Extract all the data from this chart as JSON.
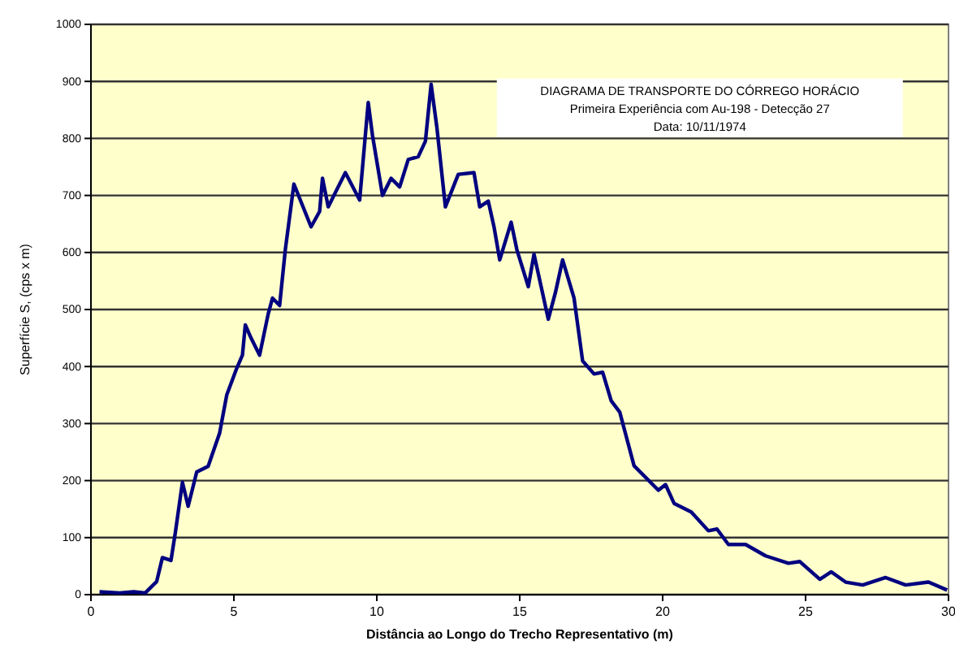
{
  "chart_data": {
    "type": "line",
    "title": "DIAGRAMA DE TRANSPORTE DO CÓRREGO HORÁCIO",
    "subtitle": "Primeira Experiência com Au-198 - Detecção 27\nData: 10/11/1974",
    "xlabel": "Distância ao Longo do Trecho Representativo (m)",
    "ylabel": "Superfície S, (cps x m)",
    "xlim": [
      0,
      30
    ],
    "xticks": [
      0,
      5,
      10,
      15,
      20,
      25,
      30
    ],
    "ylim": [
      0,
      1000
    ],
    "yticks": [
      0,
      100,
      200,
      300,
      400,
      500,
      600,
      700,
      800,
      900,
      1000
    ],
    "grid": "y",
    "marker": "none",
    "line_style": "solid",
    "series": [
      {
        "color": "#000080",
        "x": [
          0.3,
          1.0,
          1.5,
          1.9,
          2.3,
          2.5,
          2.8,
          2.95,
          3.2,
          3.4,
          3.7,
          4.1,
          4.5,
          4.75,
          5.1,
          5.3,
          5.4,
          5.6,
          5.9,
          6.2,
          6.35,
          6.6,
          6.8,
          7.1,
          7.7,
          8.0,
          8.1,
          8.3,
          8.6,
          8.9,
          9.4,
          9.7,
          9.85,
          10.2,
          10.5,
          10.8,
          11.1,
          11.45,
          11.7,
          11.9,
          12.1,
          12.4,
          12.85,
          13.4,
          13.6,
          13.9,
          14.1,
          14.3,
          14.7,
          14.9,
          15.3,
          15.5,
          16.0,
          16.25,
          16.5,
          16.9,
          17.2,
          17.6,
          17.9,
          18.2,
          18.5,
          19.0,
          19.85,
          20.1,
          20.4,
          21.0,
          21.6,
          21.9,
          22.3,
          22.9,
          23.6,
          24.4,
          24.8,
          25.5,
          25.9,
          26.4,
          27.0,
          27.8,
          28.5,
          29.3,
          29.95
        ],
        "values": [
          5,
          3,
          5,
          3,
          23,
          65,
          60,
          108,
          197,
          155,
          215,
          225,
          283,
          350,
          397,
          420,
          473,
          450,
          420,
          492,
          520,
          507,
          605,
          720,
          645,
          672,
          730,
          680,
          710,
          740,
          692,
          863,
          805,
          700,
          730,
          715,
          763,
          768,
          795,
          895,
          820,
          680,
          737,
          740,
          680,
          690,
          645,
          587,
          653,
          605,
          540,
          597,
          483,
          530,
          587,
          520,
          410,
          387,
          390,
          340,
          320,
          226,
          183,
          193,
          160,
          145,
          112,
          115,
          88,
          88,
          68,
          55,
          58,
          27,
          40,
          22,
          17,
          30,
          17,
          22,
          8
        ]
      }
    ]
  }
}
